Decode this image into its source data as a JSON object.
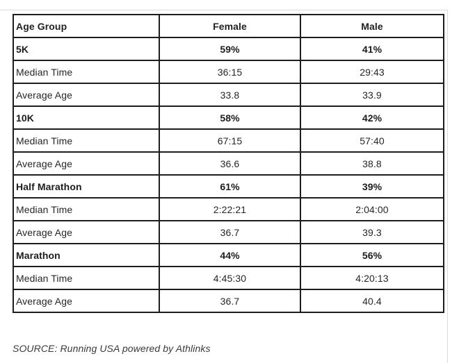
{
  "chart_data": {
    "type": "table",
    "columns": [
      "Age Group",
      "Female",
      "Male"
    ],
    "rows": [
      {
        "label": "5K",
        "female": "59%",
        "male": "41%",
        "emphasis": true
      },
      {
        "label": "Median Time",
        "female": "36:15",
        "male": "29:43",
        "emphasis": false
      },
      {
        "label": "Average Age",
        "female": "33.8",
        "male": "33.9",
        "emphasis": false
      },
      {
        "label": "10K",
        "female": "58%",
        "male": "42%",
        "emphasis": true
      },
      {
        "label": "Median Time",
        "female": "67:15",
        "male": "57:40",
        "emphasis": false
      },
      {
        "label": "Average Age",
        "female": "36.6",
        "male": "38.8",
        "emphasis": false
      },
      {
        "label": "Half Marathon",
        "female": "61%",
        "male": "39%",
        "emphasis": true
      },
      {
        "label": "Median Time",
        "female": "2:22:21",
        "male": "2:04:00",
        "emphasis": false
      },
      {
        "label": "Average Age",
        "female": "36.7",
        "male": "39.3",
        "emphasis": false
      },
      {
        "label": "Marathon",
        "female": "44%",
        "male": "56%",
        "emphasis": true
      },
      {
        "label": "Median Time",
        "female": "4:45:30",
        "male": "4:20:13",
        "emphasis": false
      },
      {
        "label": "Average Age",
        "female": "36.7",
        "male": "40.4",
        "emphasis": false
      }
    ],
    "source_note": "SOURCE: Running USA powered by Athlinks"
  },
  "colors": {
    "table_border": "#1d1d1d",
    "text": "#262626",
    "frame_hairline": "#d9d9d9"
  }
}
